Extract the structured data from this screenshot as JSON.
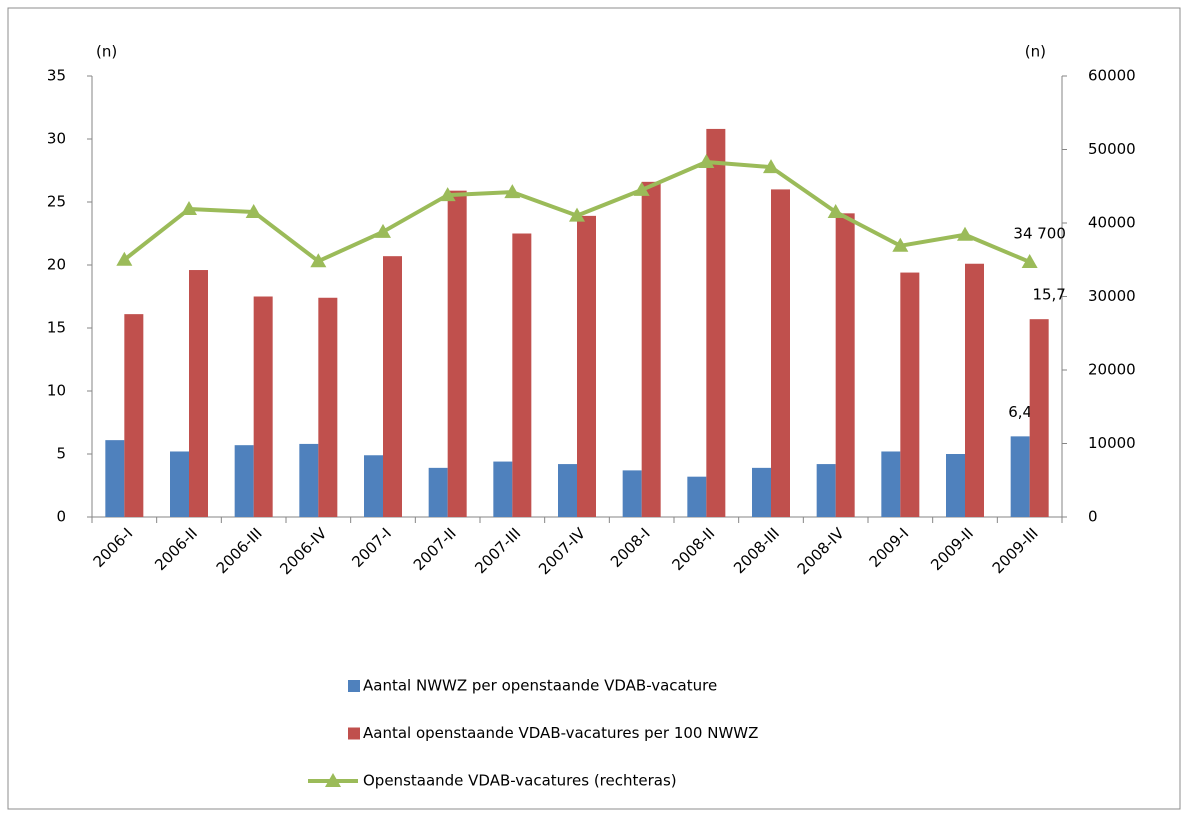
{
  "chart_data": {
    "type": "bar",
    "y_label": "(n)",
    "y2_label": "(n)",
    "categories": [
      "2006-I",
      "2006-II",
      "2006-III",
      "2006-IV",
      "2007-I",
      "2007-II",
      "2007-III",
      "2007-IV",
      "2008-I",
      "2008-II",
      "2008-III",
      "2008-IV",
      "2009-I",
      "2009-II",
      "2009-III"
    ],
    "series": [
      {
        "name": "Aantal NWWZ per openstaande VDAB-vacature",
        "color": "#4f81bd",
        "type": "bar",
        "values": [
          6.1,
          5.2,
          5.7,
          5.8,
          4.9,
          3.9,
          4.4,
          4.2,
          3.7,
          3.2,
          3.9,
          4.2,
          5.2,
          5.0,
          6.4
        ],
        "value_labels": [
          null,
          null,
          null,
          null,
          null,
          null,
          null,
          null,
          null,
          null,
          null,
          null,
          null,
          null,
          "6,4"
        ]
      },
      {
        "name": "Aantal openstaande VDAB-vacatures per 100 NWWZ",
        "color": "#c0504d",
        "type": "bar",
        "values": [
          16.1,
          19.6,
          17.5,
          17.4,
          20.7,
          25.9,
          22.5,
          23.9,
          26.6,
          30.8,
          26.0,
          24.1,
          19.4,
          20.1,
          15.7
        ],
        "value_labels": [
          null,
          null,
          null,
          null,
          null,
          null,
          null,
          null,
          null,
          null,
          null,
          null,
          null,
          null,
          "15,7"
        ]
      },
      {
        "name": "Openstaande VDAB-vacatures (rechteras)",
        "color": "#9bbb59",
        "type": "line",
        "axis": "y2",
        "values": [
          35000,
          41900,
          41500,
          34800,
          38800,
          43800,
          44200,
          41000,
          44500,
          48300,
          47600,
          41500,
          36900,
          38400,
          34700
        ],
        "value_labels": [
          null,
          null,
          null,
          null,
          null,
          null,
          null,
          null,
          null,
          null,
          null,
          null,
          null,
          null,
          "34 700"
        ]
      }
    ],
    "ylim": [
      0,
      35
    ],
    "yticks": [
      0,
      5,
      10,
      15,
      20,
      25,
      30,
      35
    ],
    "y2lim": [
      0,
      60000
    ],
    "y2ticks": [
      0,
      10000,
      20000,
      30000,
      40000,
      50000,
      60000
    ],
    "grid": false,
    "legend": "bottom"
  }
}
